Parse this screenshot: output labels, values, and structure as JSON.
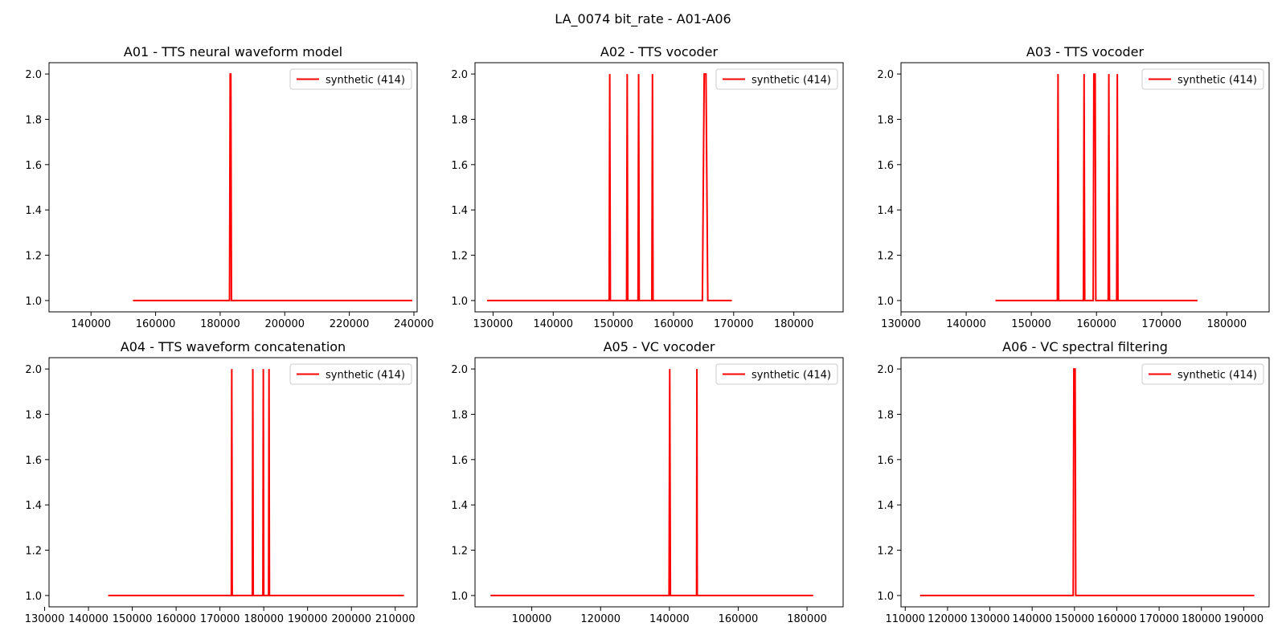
{
  "figure": {
    "title": "LA_0074 bit_rate - A01-A06"
  },
  "chart_data": [
    {
      "type": "line",
      "title": "A01 - TTS neural waveform model",
      "xlabel": "",
      "ylabel": "",
      "xlim": [
        127000,
        241000
      ],
      "ylim": [
        0.95,
        2.05
      ],
      "xticks": [
        140000,
        160000,
        180000,
        200000,
        220000,
        240000
      ],
      "yticks": [
        1.0,
        1.2,
        1.4,
        1.6,
        1.8,
        2.0
      ],
      "legend": "upper right",
      "series": [
        {
          "name": "synthetic (414)",
          "color": "#ff0000",
          "x": [
            153000,
            182900,
            183100,
            183300,
            183500,
            239500
          ],
          "y": [
            1,
            1,
            2,
            2,
            1,
            1
          ]
        }
      ]
    },
    {
      "type": "line",
      "title": "A02 - TTS vocoder",
      "xlabel": "",
      "ylabel": "",
      "xlim": [
        127000,
        188200
      ],
      "ylim": [
        0.95,
        2.05
      ],
      "xticks": [
        130000,
        140000,
        150000,
        160000,
        170000,
        180000
      ],
      "yticks": [
        1.0,
        1.2,
        1.4,
        1.6,
        1.8,
        2.0
      ],
      "legend": "upper right",
      "series": [
        {
          "name": "synthetic (414)",
          "color": "#ff0000",
          "x": [
            129000,
            149300,
            149400,
            149500,
            152200,
            152300,
            152400,
            154100,
            154200,
            154300,
            156400,
            156500,
            156600,
            164800,
            165100,
            165400,
            165700,
            169700
          ],
          "y": [
            1,
            1,
            2,
            1,
            1,
            2,
            1,
            1,
            2,
            1,
            1,
            2,
            1,
            1,
            2,
            2,
            1,
            1
          ]
        }
      ]
    },
    {
      "type": "line",
      "title": "A03 - TTS vocoder",
      "xlabel": "",
      "ylabel": "",
      "xlim": [
        130000,
        186500
      ],
      "ylim": [
        0.95,
        2.05
      ],
      "xticks": [
        130000,
        140000,
        150000,
        160000,
        170000,
        180000
      ],
      "yticks": [
        1.0,
        1.2,
        1.4,
        1.6,
        1.8,
        2.0
      ],
      "legend": "upper right",
      "series": [
        {
          "name": "synthetic (414)",
          "color": "#ff0000",
          "x": [
            144500,
            154000,
            154100,
            154200,
            158000,
            158100,
            158200,
            159500,
            159600,
            159800,
            159900,
            161800,
            161900,
            162000,
            163100,
            163200,
            163300,
            175500
          ],
          "y": [
            1,
            1,
            2,
            1,
            1,
            2,
            1,
            1,
            2,
            2,
            1,
            1,
            2,
            1,
            1,
            2,
            1,
            1
          ]
        }
      ]
    },
    {
      "type": "line",
      "title": "A04 - TTS waveform concatenation",
      "xlabel": "",
      "ylabel": "",
      "xlim": [
        131000,
        215000
      ],
      "ylim": [
        0.95,
        2.05
      ],
      "xticks": [
        130000,
        140000,
        150000,
        160000,
        170000,
        180000,
        190000,
        200000,
        210000
      ],
      "yticks": [
        1.0,
        1.2,
        1.4,
        1.6,
        1.8,
        2.0
      ],
      "legend": "upper right",
      "series": [
        {
          "name": "synthetic (414)",
          "color": "#ff0000",
          "x": [
            144500,
            172600,
            172700,
            172800,
            177400,
            177500,
            177600,
            179800,
            179900,
            180000,
            181100,
            181200,
            181300,
            212000
          ],
          "y": [
            1,
            1,
            2,
            1,
            1,
            2,
            1,
            1,
            2,
            1,
            1,
            2,
            1,
            1
          ]
        }
      ]
    },
    {
      "type": "line",
      "title": "A05 - VC vocoder",
      "xlabel": "",
      "ylabel": "",
      "xlim": [
        83500,
        190500
      ],
      "ylim": [
        0.95,
        2.05
      ],
      "xticks": [
        100000,
        120000,
        140000,
        160000,
        180000
      ],
      "yticks": [
        1.0,
        1.2,
        1.4,
        1.6,
        1.8,
        2.0
      ],
      "legend": "upper right",
      "series": [
        {
          "name": "synthetic (414)",
          "color": "#ff0000",
          "x": [
            88000,
            139900,
            140100,
            140300,
            147900,
            148000,
            148100,
            181800
          ],
          "y": [
            1,
            1,
            2,
            1,
            1,
            2,
            1,
            1
          ]
        }
      ]
    },
    {
      "type": "line",
      "title": "A06 - VC spectral filtering",
      "xlabel": "",
      "ylabel": "",
      "xlim": [
        109000,
        196000
      ],
      "ylim": [
        0.95,
        2.05
      ],
      "xticks": [
        110000,
        120000,
        130000,
        140000,
        150000,
        160000,
        170000,
        180000,
        190000
      ],
      "yticks": [
        1.0,
        1.2,
        1.4,
        1.6,
        1.8,
        2.0
      ],
      "legend": "upper right",
      "series": [
        {
          "name": "synthetic (414)",
          "color": "#ff0000",
          "x": [
            113500,
            149700,
            149850,
            150000,
            150150,
            150300,
            192500
          ],
          "y": [
            1,
            1,
            2,
            2,
            2,
            1,
            1
          ]
        }
      ]
    }
  ]
}
